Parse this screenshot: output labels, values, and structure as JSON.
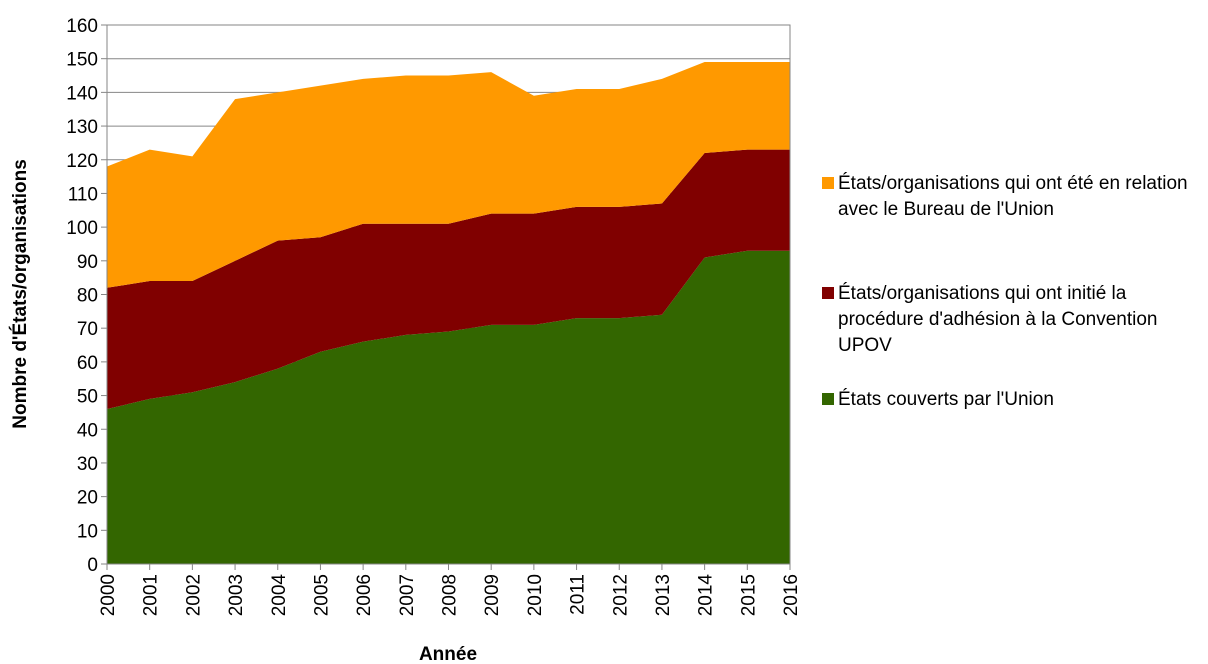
{
  "chart_data": {
    "type": "area",
    "stacked": true,
    "xlabel": "Année",
    "ylabel": "Nombre d'États/organisations",
    "ylim": [
      0,
      160
    ],
    "ytick_step": 10,
    "x": [
      "2000",
      "2001",
      "2002",
      "2003",
      "2004",
      "2005",
      "2006",
      "2007",
      "2008",
      "2009",
      "2010",
      "2011",
      "2012",
      "2013",
      "2014",
      "2015",
      "2016"
    ],
    "grid": "horizontal",
    "legend_position": "right",
    "series": [
      {
        "name": "États couverts par l'Union",
        "color": "#336600",
        "values": [
          46,
          49,
          51,
          54,
          58,
          63,
          66,
          68,
          69,
          71,
          71,
          73,
          73,
          74,
          91,
          93,
          93
        ]
      },
      {
        "name": "États/organisations qui ont initié la procédure d'adhésion à la Convention UPOV",
        "color": "#800000",
        "values": [
          36,
          35,
          33,
          36,
          38,
          34,
          35,
          33,
          32,
          33,
          33,
          33,
          33,
          33,
          31,
          30,
          30
        ]
      },
      {
        "name": "États/organisations qui ont été en relation avec le Bureau de l'Union",
        "color": "#FF9900",
        "values": [
          36,
          39,
          37,
          48,
          44,
          45,
          43,
          44,
          44,
          42,
          35,
          35,
          35,
          37,
          27,
          26,
          26
        ]
      }
    ]
  }
}
